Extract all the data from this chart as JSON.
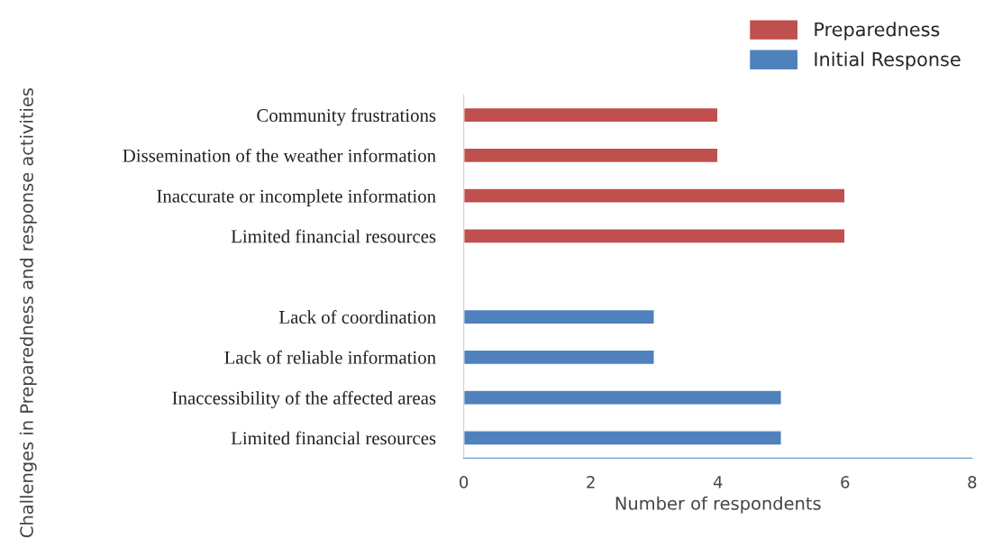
{
  "chart_data": {
    "type": "bar",
    "orientation": "horizontal",
    "xlabel": "Number of respondents",
    "ylabel": "Challenges in Preparedness and response activities",
    "categories": [
      "Community frustrations",
      "Dissemination of the weather information",
      "Inaccurate or incomplete information",
      "Limited financial resources",
      null,
      "Lack of coordination",
      "Lack of reliable information",
      "Inaccessibility of the affected areas",
      "Limited financial resources"
    ],
    "series": [
      {
        "name": "Preparedness",
        "color": "#c0504d",
        "values": [
          4,
          4,
          6,
          6,
          null,
          null,
          null,
          null,
          null
        ]
      },
      {
        "name": "Initial Response",
        "color": "#4f81bd",
        "values": [
          null,
          null,
          null,
          null,
          null,
          3,
          3,
          5,
          5
        ]
      }
    ],
    "xlim": [
      0,
      8
    ],
    "xticks": [
      0,
      2,
      4,
      6,
      8
    ],
    "grid": false,
    "legend": "top right"
  }
}
